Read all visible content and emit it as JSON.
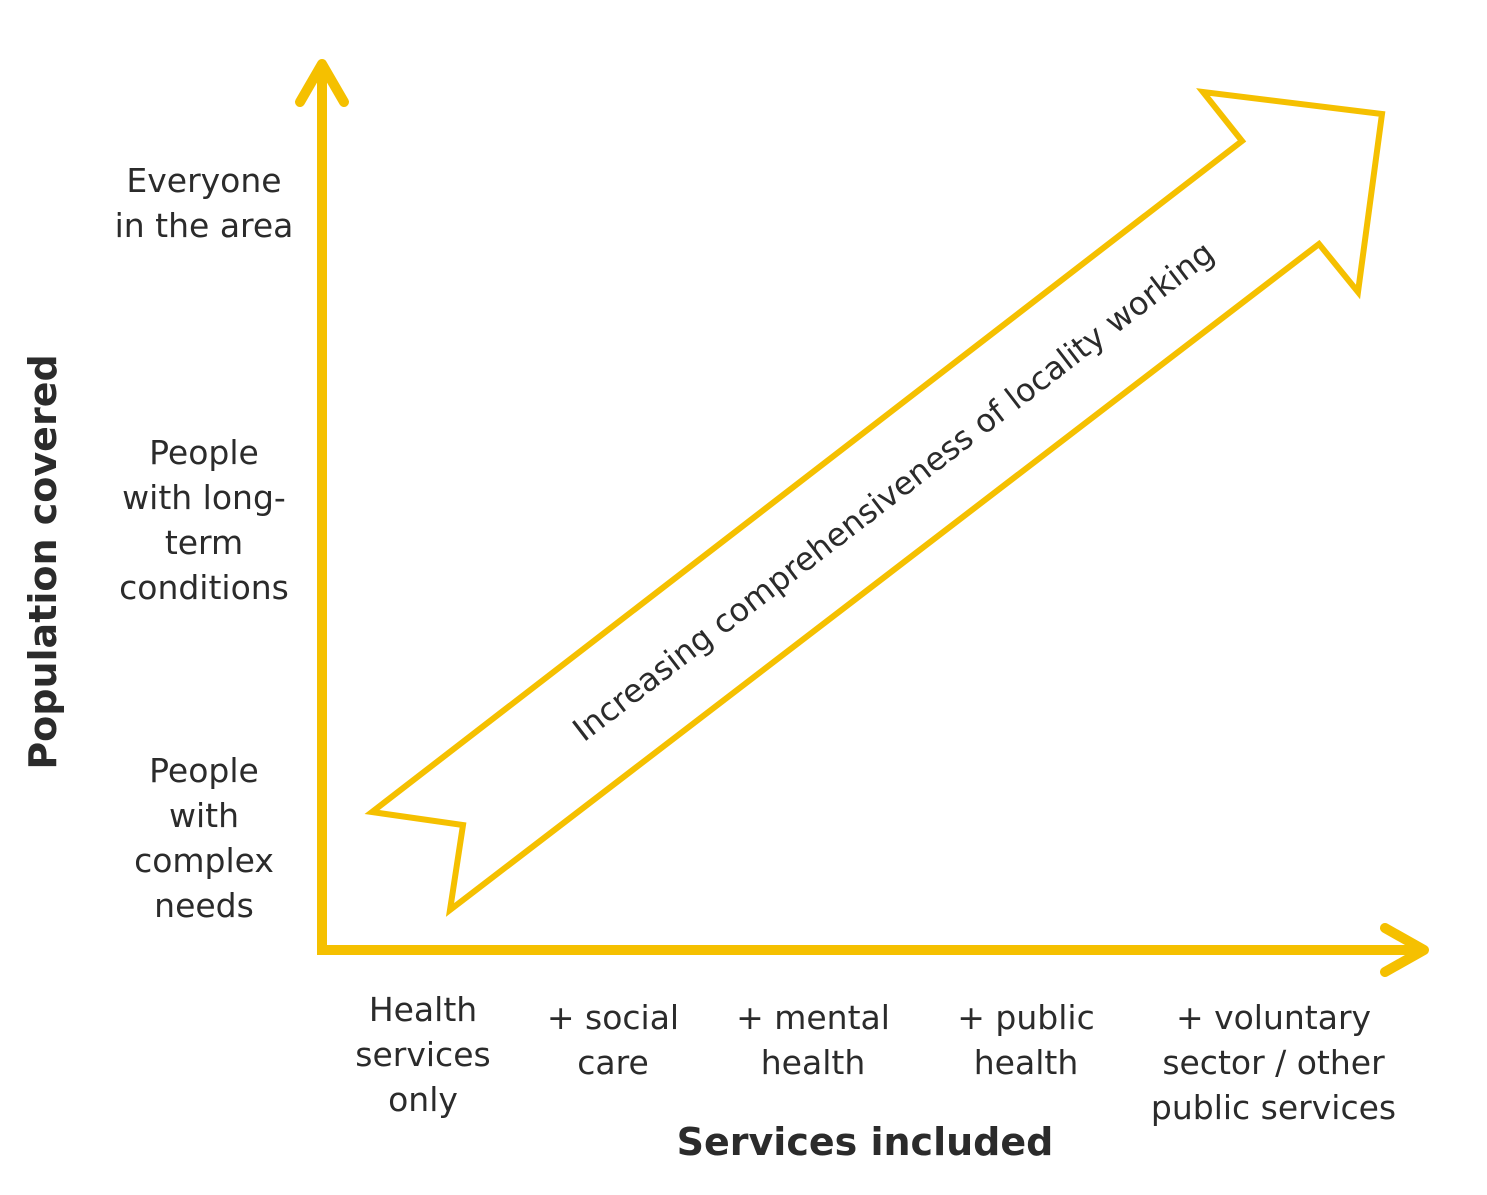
{
  "diagram": {
    "accent_color": "#F5C000",
    "y_axis": {
      "title": "Population covered",
      "levels": [
        "Everyone\nin the area",
        "People\nwith long-\nterm\nconditions",
        "People\nwith\ncomplex\nneeds"
      ]
    },
    "x_axis": {
      "title": "Services included",
      "levels": [
        "Health\nservices\nonly",
        "+ social\ncare",
        "+ mental\nhealth",
        "+ public\nhealth",
        "+ voluntary\nsector / other\npublic services"
      ]
    },
    "progress_arrow": {
      "label": "Increasing comprehensiveness of locality working"
    }
  }
}
